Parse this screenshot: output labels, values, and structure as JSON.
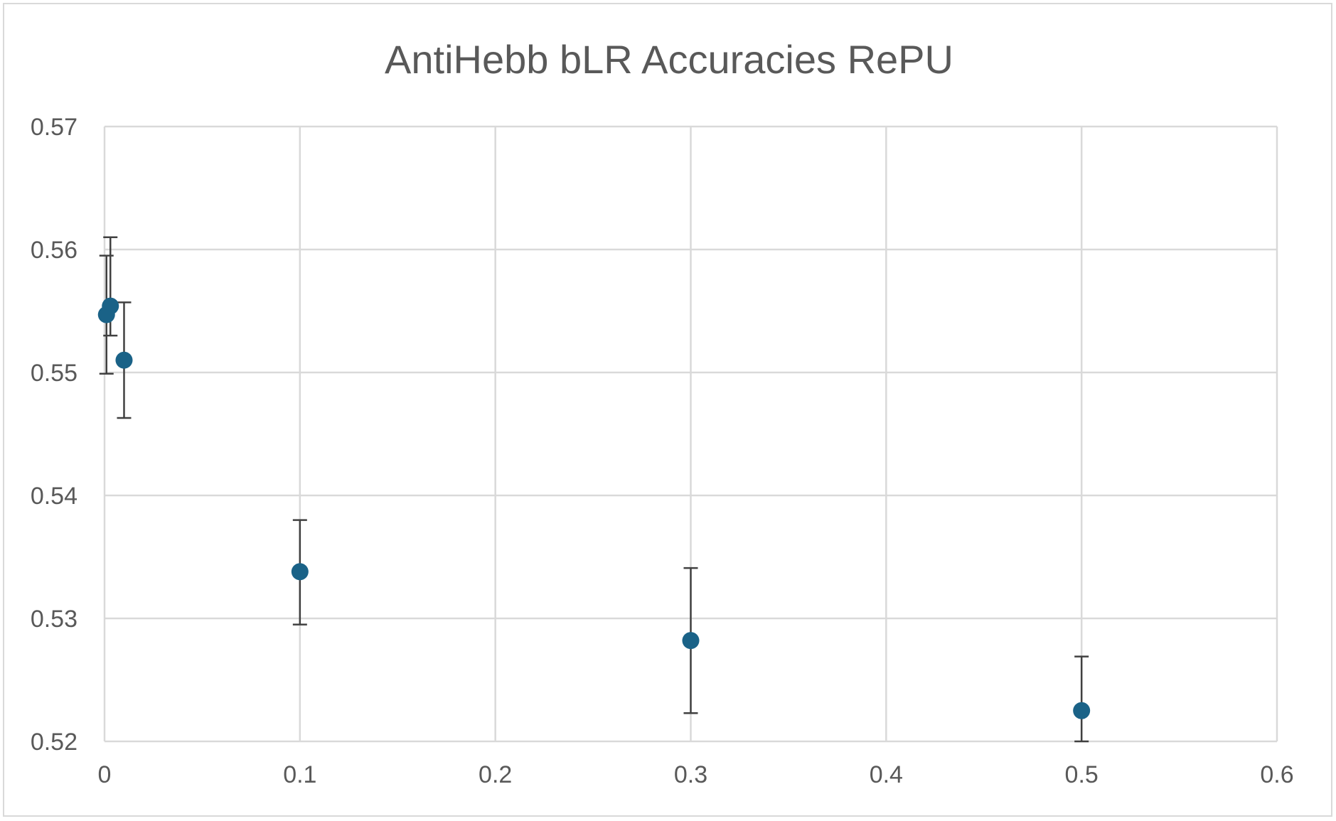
{
  "chart_data": {
    "type": "scatter",
    "title": "AntiHebb bLR Accuracies RePU",
    "xlabel": "",
    "ylabel": "",
    "xlim": [
      0,
      0.6
    ],
    "ylim": [
      0.52,
      0.57
    ],
    "x_ticks": [
      "0",
      "0.1",
      "0.2",
      "0.3",
      "0.4",
      "0.5",
      "0.6"
    ],
    "y_ticks": [
      "0.52",
      "0.53",
      "0.54",
      "0.55",
      "0.56",
      "0.57"
    ],
    "grid": true,
    "legend": "none",
    "series": [
      {
        "marker_color": "#1a6287",
        "error_bar_color": "#404040",
        "points": [
          {
            "x": 0.001,
            "y": 0.5547,
            "err_low": 0.0048,
            "err_high": 0.0048
          },
          {
            "x": 0.003,
            "y": 0.5554,
            "err_low": 0.0024,
            "err_high": 0.0056
          },
          {
            "x": 0.01,
            "y": 0.551,
            "err_low": 0.0047,
            "err_high": 0.0047
          },
          {
            "x": 0.1,
            "y": 0.5338,
            "err_low": 0.0043,
            "err_high": 0.0042
          },
          {
            "x": 0.3,
            "y": 0.5282,
            "err_low": 0.0059,
            "err_high": 0.0059
          },
          {
            "x": 0.5,
            "y": 0.5225,
            "err_low": 0.0025,
            "err_high": 0.0044
          }
        ]
      }
    ]
  }
}
